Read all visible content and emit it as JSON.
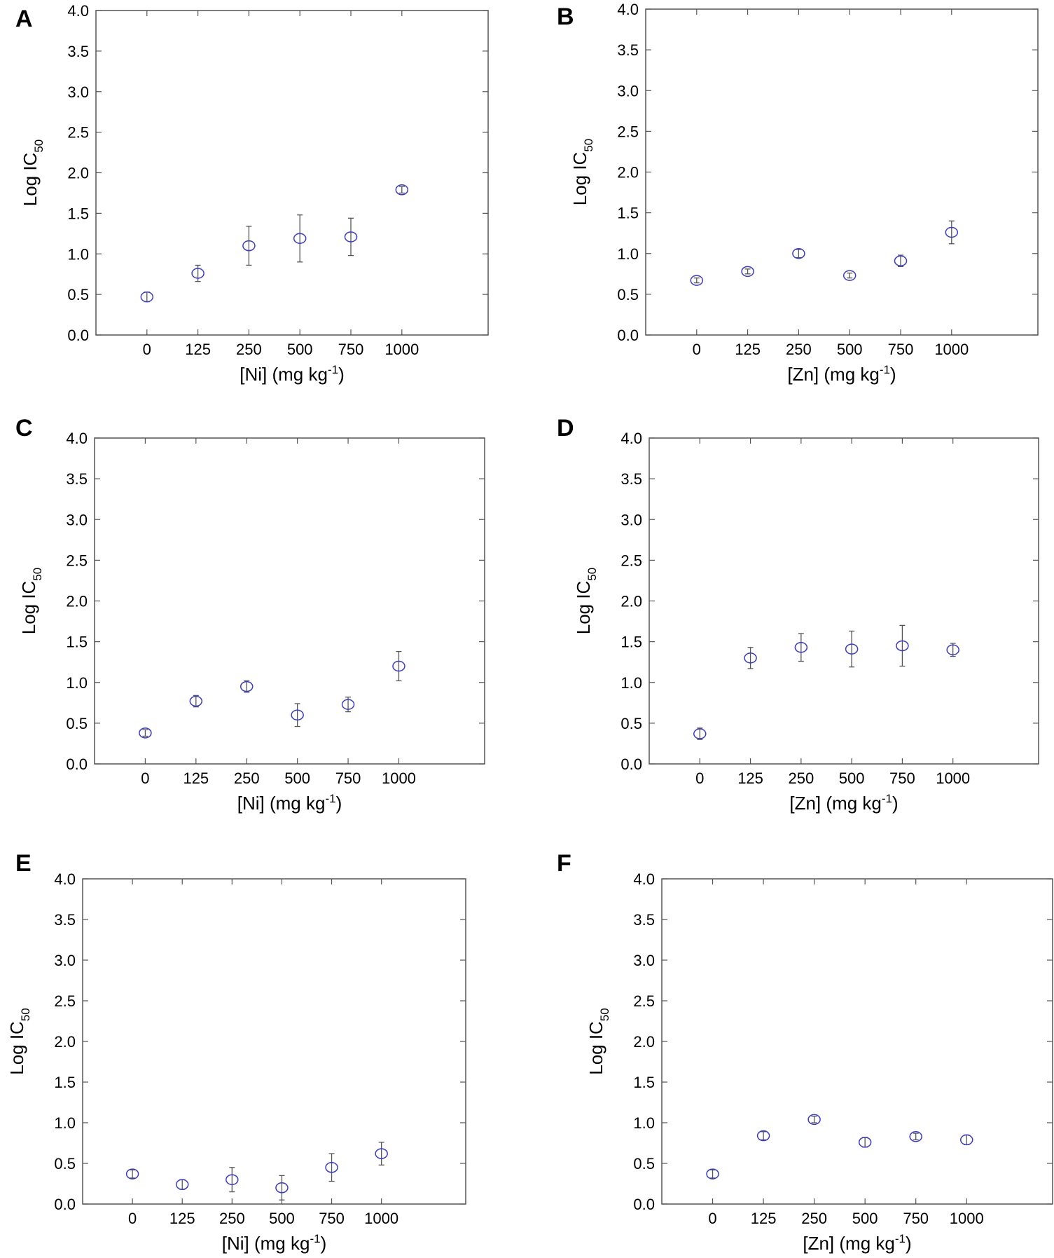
{
  "colors": {
    "marker": "#3a3ad0",
    "errorbar": "#555555",
    "axis": "#555555"
  },
  "chart_data": [
    {
      "type": "scatter",
      "panel": "A",
      "categories": [
        "0",
        "125",
        "250",
        "500",
        "750",
        "1000"
      ],
      "values": [
        0.47,
        0.76,
        1.1,
        1.19,
        1.21,
        1.79
      ],
      "errors": [
        0.06,
        0.1,
        0.24,
        0.29,
        0.23,
        0.04
      ],
      "xlabel": {
        "main": "[Ni] (mg kg",
        "sup": "-1",
        "tail": ")"
      },
      "ylabel": {
        "main": "Log IC",
        "sub": "50"
      },
      "ylim": [
        0,
        4
      ],
      "yticks": [
        "0.0",
        "0.5",
        "1.0",
        "1.5",
        "2.0",
        "2.5",
        "3.0",
        "3.5",
        "4.0"
      ]
    },
    {
      "type": "scatter",
      "panel": "B",
      "categories": [
        "0",
        "125",
        "250",
        "500",
        "750",
        "1000"
      ],
      "values": [
        0.67,
        0.78,
        1.0,
        0.73,
        0.91,
        1.26
      ],
      "errors": [
        0.03,
        0.03,
        0.05,
        0.03,
        0.07,
        0.14
      ],
      "xlabel": {
        "main": "[Zn] (mg kg",
        "sup": "-1",
        "tail": ")"
      },
      "ylabel": {
        "main": "Log IC",
        "sub": "50"
      },
      "ylim": [
        0,
        4
      ],
      "yticks": [
        "0.0",
        "0.5",
        "1.0",
        "1.5",
        "2.0",
        "2.5",
        "3.0",
        "3.5",
        "4.0"
      ]
    },
    {
      "type": "scatter",
      "panel": "C",
      "categories": [
        "0",
        "125",
        "250",
        "500",
        "750",
        "1000"
      ],
      "values": [
        0.38,
        0.77,
        0.95,
        0.6,
        0.73,
        1.2
      ],
      "errors": [
        0.04,
        0.07,
        0.07,
        0.14,
        0.09,
        0.18
      ],
      "xlabel": {
        "main": "[Ni] (mg kg",
        "sup": "-1",
        "tail": ")"
      },
      "ylabel": {
        "main": "Log IC",
        "sub": "50"
      },
      "ylim": [
        0,
        4
      ],
      "yticks": [
        "0.0",
        "0.5",
        "1.0",
        "1.5",
        "2.0",
        "2.5",
        "3.0",
        "3.5",
        "4.0"
      ]
    },
    {
      "type": "scatter",
      "panel": "D",
      "categories": [
        "0",
        "125",
        "250",
        "500",
        "750",
        "1000"
      ],
      "values": [
        0.37,
        1.3,
        1.43,
        1.41,
        1.45,
        1.4
      ],
      "errors": [
        0.07,
        0.13,
        0.17,
        0.22,
        0.25,
        0.08
      ],
      "xlabel": {
        "main": "[Zn] (mg kg",
        "sup": "-1",
        "tail": ")"
      },
      "ylabel": {
        "main": "Log IC",
        "sub": "50"
      },
      "ylim": [
        0,
        4
      ],
      "yticks": [
        "0.0",
        "0.5",
        "1.0",
        "1.5",
        "2.0",
        "2.5",
        "3.0",
        "3.5",
        "4.0"
      ]
    },
    {
      "type": "scatter",
      "panel": "E",
      "categories": [
        "0",
        "125",
        "250",
        "500",
        "750",
        "1000"
      ],
      "values": [
        0.37,
        0.24,
        0.3,
        0.2,
        0.45,
        0.62
      ],
      "errors": [
        0.05,
        0.06,
        0.15,
        0.15,
        0.17,
        0.14
      ],
      "xlabel": {
        "main": "[Ni] (mg kg",
        "sup": "-1",
        "tail": ")"
      },
      "ylabel": {
        "main": "Log IC",
        "sub": "50"
      },
      "ylim": [
        0,
        4
      ],
      "yticks": [
        "0.0",
        "0.5",
        "1.0",
        "1.5",
        "2.0",
        "2.5",
        "3.0",
        "3.5",
        "4.0"
      ]
    },
    {
      "type": "scatter",
      "panel": "F",
      "categories": [
        "0",
        "125",
        "250",
        "500",
        "750",
        "1000"
      ],
      "values": [
        0.37,
        0.84,
        1.04,
        0.76,
        0.83,
        0.79
      ],
      "errors": [
        0.05,
        0.05,
        0.04,
        0.06,
        0.04,
        0.06
      ],
      "xlabel": {
        "main": "[Zn] (mg kg",
        "sup": "-1",
        "tail": ")"
      },
      "ylabel": {
        "main": "Log IC",
        "sub": "50"
      },
      "ylim": [
        0,
        4
      ],
      "yticks": [
        "0.0",
        "0.5",
        "1.0",
        "1.5",
        "2.0",
        "2.5",
        "3.0",
        "3.5",
        "4.0"
      ]
    }
  ]
}
